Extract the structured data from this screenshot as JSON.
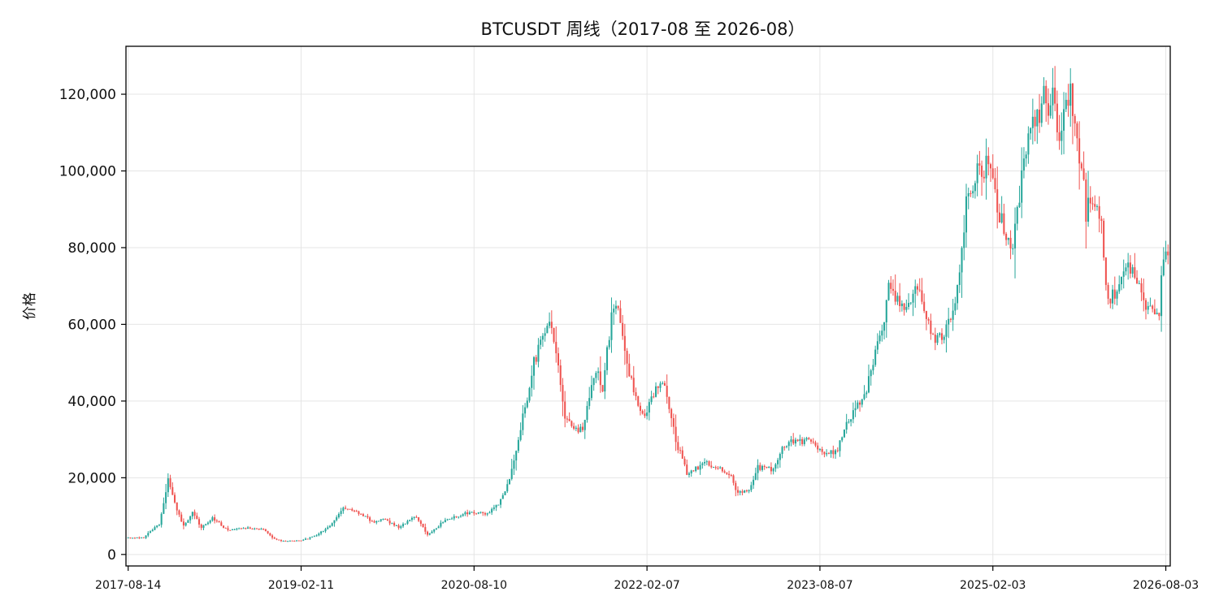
{
  "chart_data": {
    "type": "candlestick",
    "title": "BTCUSDT 周线（2017-08 至 2026-08）",
    "ylabel": "价格",
    "xlabel": "",
    "ylim": [
      -3000,
      132500
    ],
    "yticks": [
      0,
      20000,
      40000,
      60000,
      80000,
      100000,
      120000
    ],
    "ytick_labels": [
      "0",
      "20,000",
      "40,000",
      "60,000",
      "80,000",
      "100,000",
      "120,000"
    ],
    "xticks": [
      "2017-08-14",
      "2019-02-11",
      "2020-08-10",
      "2022-02-07",
      "2023-08-07",
      "2025-02-03",
      "2026-08-03"
    ],
    "xrange": [
      "2017-08-07",
      "2026-08-17"
    ],
    "grid": true,
    "up_color": "#26a69a",
    "down_color": "#ef5350",
    "anchors": [
      [
        "2017-08-14",
        4300
      ],
      [
        "2017-10-02",
        4400
      ],
      [
        "2017-11-20",
        8000
      ],
      [
        "2017-12-18",
        19000
      ],
      [
        "2018-01-15",
        11500
      ],
      [
        "2018-02-05",
        7500
      ],
      [
        "2018-03-05",
        11000
      ],
      [
        "2018-04-02",
        7000
      ],
      [
        "2018-05-07",
        9500
      ],
      [
        "2018-06-25",
        6200
      ],
      [
        "2018-08-06",
        7000
      ],
      [
        "2018-10-15",
        6500
      ],
      [
        "2018-11-19",
        4000
      ],
      [
        "2018-12-17",
        3500
      ],
      [
        "2019-02-11",
        3600
      ],
      [
        "2019-04-01",
        5000
      ],
      [
        "2019-05-20",
        8000
      ],
      [
        "2019-06-24",
        12500
      ],
      [
        "2019-08-05",
        11000
      ],
      [
        "2019-09-30",
        8300
      ],
      [
        "2019-10-28",
        9300
      ],
      [
        "2019-12-16",
        7000
      ],
      [
        "2020-02-10",
        10000
      ],
      [
        "2020-03-16",
        5000
      ],
      [
        "2020-05-11",
        9000
      ],
      [
        "2020-07-27",
        11000
      ],
      [
        "2020-09-21",
        10600
      ],
      [
        "2020-10-26",
        13500
      ],
      [
        "2020-11-30",
        19000
      ],
      [
        "2020-12-28",
        30000
      ],
      [
        "2021-02-15",
        50000
      ],
      [
        "2021-03-15",
        58000
      ],
      [
        "2021-04-12",
        60000
      ],
      [
        "2021-05-24",
        36000
      ],
      [
        "2021-07-19",
        32000
      ],
      [
        "2021-08-30",
        49000
      ],
      [
        "2021-09-20",
        43000
      ],
      [
        "2021-10-18",
        62000
      ],
      [
        "2021-11-08",
        64500
      ],
      [
        "2021-12-06",
        49000
      ],
      [
        "2022-01-24",
        36000
      ],
      [
        "2022-03-28",
        46000
      ],
      [
        "2022-05-09",
        30000
      ],
      [
        "2022-06-13",
        21000
      ],
      [
        "2022-08-15",
        24000
      ],
      [
        "2022-10-31",
        20500
      ],
      [
        "2022-11-14",
        16500
      ],
      [
        "2022-12-26",
        16500
      ],
      [
        "2023-01-23",
        23000
      ],
      [
        "2023-03-13",
        22000
      ],
      [
        "2023-04-10",
        28000
      ],
      [
        "2023-06-26",
        30000
      ],
      [
        "2023-08-21",
        26000
      ],
      [
        "2023-10-02",
        27500
      ],
      [
        "2023-11-06",
        35000
      ],
      [
        "2024-01-01",
        43000
      ],
      [
        "2024-02-26",
        62000
      ],
      [
        "2024-03-11",
        70000
      ],
      [
        "2024-05-06",
        63000
      ],
      [
        "2024-06-03",
        70000
      ],
      [
        "2024-08-05",
        55000
      ],
      [
        "2024-10-07",
        63000
      ],
      [
        "2024-11-11",
        90000
      ],
      [
        "2024-12-16",
        100000
      ],
      [
        "2025-01-20",
        102000
      ],
      [
        "2025-02-24",
        88000
      ],
      [
        "2025-04-07",
        80000
      ],
      [
        "2025-05-19",
        105000
      ],
      [
        "2025-07-14",
        118000
      ],
      [
        "2025-08-11",
        119000
      ],
      [
        "2025-09-01",
        109000
      ],
      [
        "2025-10-06",
        122000
      ],
      [
        "2025-10-27",
        110000
      ],
      [
        "2025-11-24",
        89000
      ],
      [
        "2026-01-05",
        91000
      ],
      [
        "2026-02-02",
        65000
      ],
      [
        "2026-03-09",
        71000
      ],
      [
        "2026-04-20",
        76000
      ],
      [
        "2026-05-25",
        65000
      ],
      [
        "2026-07-13",
        63500
      ],
      [
        "2026-07-27",
        78000
      ],
      [
        "2026-08-10",
        78500
      ]
    ]
  }
}
